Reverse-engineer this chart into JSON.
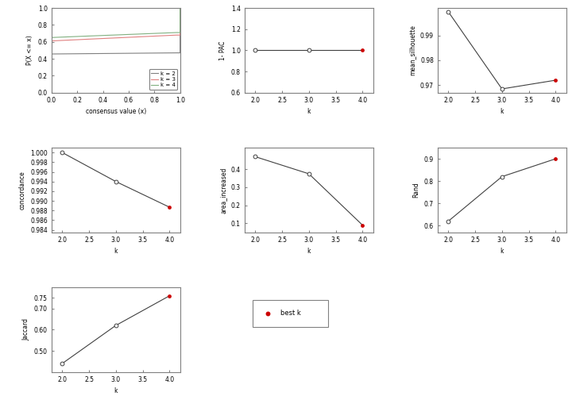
{
  "ecdf": {
    "k2_color": "#808080",
    "k3_color": "#E08080",
    "k4_color": "#80B080"
  },
  "pac": {
    "k": [
      2.0,
      3.0,
      4.0
    ],
    "values": [
      1.0,
      1.0,
      1.0
    ],
    "best_k": 4,
    "ylim": [
      0.6,
      1.4
    ],
    "yticks": [
      0.6,
      0.8,
      1.0,
      1.2,
      1.4
    ]
  },
  "silhouette": {
    "k": [
      2.0,
      3.0,
      4.0
    ],
    "values": [
      0.9995,
      0.9685,
      0.972
    ],
    "best_k": 4,
    "ylim": [
      0.967,
      1.001
    ],
    "yticks": [
      0.97,
      0.98,
      0.99
    ]
  },
  "concordance": {
    "k": [
      2.0,
      3.0,
      4.0
    ],
    "values": [
      1.0,
      0.994,
      0.9887
    ],
    "best_k": 4,
    "ylim": [
      0.9835,
      1.001
    ],
    "yticks": [
      0.984,
      0.986,
      0.988,
      0.99,
      0.992,
      0.994,
      0.996,
      0.998,
      1.0
    ]
  },
  "area_increased": {
    "k": [
      2.0,
      3.0,
      4.0
    ],
    "values": [
      0.47,
      0.375,
      0.09
    ],
    "best_k": 4,
    "ylim": [
      0.05,
      0.52
    ],
    "yticks": [
      0.1,
      0.2,
      0.3,
      0.4
    ]
  },
  "rand": {
    "k": [
      2.0,
      3.0,
      4.0
    ],
    "values": [
      0.62,
      0.82,
      0.9
    ],
    "best_k": 4,
    "ylim": [
      0.57,
      0.95
    ],
    "yticks": [
      0.6,
      0.7,
      0.8,
      0.9
    ]
  },
  "jaccard": {
    "k": [
      2.0,
      3.0,
      4.0
    ],
    "values": [
      0.44,
      0.62,
      0.76
    ],
    "best_k": 4,
    "ylim": [
      0.4,
      0.8
    ],
    "yticks": [
      0.5,
      0.6,
      0.7,
      0.75
    ]
  },
  "legend_entries": [
    "k = 2",
    "k = 3",
    "k = 4"
  ],
  "legend_colors": [
    "#808080",
    "#E08080",
    "#80B080"
  ],
  "best_k_color": "#CC0000",
  "line_color": "#404040"
}
